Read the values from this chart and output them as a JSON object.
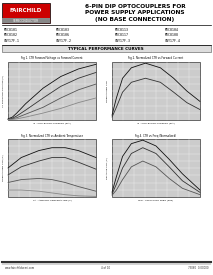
{
  "title_line1": "6-PIN DIP OPTOCOUPLERS FOR",
  "title_line2": "POWER SUPPLY APPLICATIONS",
  "title_line3": "(NO BASE CONNECTION)",
  "company": "FAIRCHILD",
  "company_sub": "SEMICONDUCTOR",
  "models": [
    [
      "MOC8101",
      "MOC8103",
      "MOC8113",
      "MOC8104"
    ],
    [
      "MOC8102",
      "MOC8106",
      "MOC8117",
      "MOC8108"
    ],
    [
      "CNY17F-1",
      "CNY17F-2",
      "CNY17F-3",
      "CNY17F-4"
    ]
  ],
  "section_title": "TYPICAL PERFORMANCE CURVES",
  "graph1_title": "Fig 1. CTR Forward Voltage vs Forward Current",
  "graph2_title": "Fig 2. Normalized CTR vs Forward Current",
  "graph3_title": "Fig 3. Normalized CTR vs Ambient Temperature",
  "graph4_title": "Fig 4. CTR vs Freq (Normalized)",
  "graph1_xlabel": "IF - COLLECTOR CURRENT (mA)",
  "graph1_ylabel": "VF FORWARD VOLTAGE (V)",
  "graph2_xlabel": "IF - COLLECTOR CURRENT (mA)",
  "graph2_ylabel": "NORMALIZED CTR",
  "graph3_xlabel": "TA - AMBIENT TEMPERATURE (C)",
  "graph3_ylabel": "NORMALIZED CTR (%)",
  "graph4_xlabel": "fSW - SWITCHING FREQ (kHz)",
  "graph4_ylabel": "RELATIVE CTR (%)",
  "footer_url": "www.fairchildsemi.com",
  "footer_page": "4 of 10",
  "footer_rev": "73060  0.00000",
  "bg_color": "#ffffff",
  "logo_red": "#cc0000",
  "logo_text_color": "#ffffff",
  "border_color": "#000000",
  "graph_bg": "#cccccc",
  "grid_color": "#ffffff",
  "section_bg": "#dddddd",
  "curve_colors": [
    "#111111",
    "#333333",
    "#555555",
    "#888888"
  ],
  "curves1": {
    "xn": [
      [
        0.0,
        0.05,
        0.1,
        0.2,
        0.4,
        0.6,
        0.8,
        1.0
      ],
      [
        0.0,
        0.05,
        0.1,
        0.2,
        0.4,
        0.6,
        0.8,
        1.0
      ],
      [
        0.0,
        0.05,
        0.1,
        0.2,
        0.4,
        0.6,
        0.8,
        1.0
      ],
      [
        0.0,
        0.05,
        0.1,
        0.2,
        0.4,
        0.6,
        0.8,
        1.0
      ]
    ],
    "yn": [
      [
        0.02,
        0.05,
        0.12,
        0.28,
        0.55,
        0.75,
        0.88,
        0.96
      ],
      [
        0.01,
        0.03,
        0.07,
        0.17,
        0.38,
        0.58,
        0.72,
        0.82
      ],
      [
        0.01,
        0.02,
        0.04,
        0.1,
        0.22,
        0.38,
        0.52,
        0.62
      ],
      [
        0.005,
        0.01,
        0.02,
        0.05,
        0.12,
        0.2,
        0.3,
        0.38
      ]
    ]
  },
  "curves2": {
    "xn": [
      [
        0.0,
        0.05,
        0.12,
        0.22,
        0.38,
        0.55,
        0.7,
        0.85,
        1.0
      ],
      [
        0.0,
        0.05,
        0.12,
        0.22,
        0.38,
        0.55,
        0.7,
        0.85,
        1.0
      ]
    ],
    "yn": [
      [
        0.08,
        0.38,
        0.72,
        0.9,
        0.98,
        0.9,
        0.72,
        0.5,
        0.32
      ],
      [
        0.05,
        0.22,
        0.48,
        0.65,
        0.72,
        0.65,
        0.48,
        0.3,
        0.18
      ]
    ]
  },
  "curves3": {
    "xn": [
      [
        0.0,
        0.15,
        0.35,
        0.5,
        0.65,
        0.8,
        1.0
      ],
      [
        0.0,
        0.15,
        0.35,
        0.5,
        0.65,
        0.8,
        1.0
      ],
      [
        0.0,
        0.15,
        0.35,
        0.5,
        0.65,
        0.8,
        1.0
      ],
      [
        0.0,
        0.15,
        0.35,
        0.5,
        0.65,
        0.8,
        1.0
      ]
    ],
    "yn": [
      [
        0.5,
        0.68,
        0.8,
        0.85,
        0.85,
        0.8,
        0.68
      ],
      [
        0.38,
        0.52,
        0.62,
        0.68,
        0.68,
        0.6,
        0.48
      ],
      [
        0.25,
        0.3,
        0.32,
        0.3,
        0.25,
        0.18,
        0.1
      ],
      [
        0.12,
        0.12,
        0.1,
        0.07,
        0.04,
        0.02,
        0.01
      ]
    ]
  },
  "curves4": {
    "xn": [
      [
        0.0,
        0.05,
        0.12,
        0.22,
        0.35,
        0.5,
        0.65,
        0.8,
        1.0
      ],
      [
        0.0,
        0.05,
        0.12,
        0.22,
        0.35,
        0.5,
        0.65,
        0.8,
        1.0
      ],
      [
        0.0,
        0.05,
        0.12,
        0.22,
        0.35,
        0.5,
        0.65,
        0.8,
        1.0
      ]
    ],
    "yn": [
      [
        0.08,
        0.35,
        0.7,
        0.92,
        0.98,
        0.88,
        0.65,
        0.4,
        0.12
      ],
      [
        0.05,
        0.22,
        0.5,
        0.75,
        0.85,
        0.75,
        0.52,
        0.28,
        0.08
      ],
      [
        0.03,
        0.12,
        0.3,
        0.52,
        0.62,
        0.52,
        0.32,
        0.15,
        0.04
      ]
    ]
  }
}
